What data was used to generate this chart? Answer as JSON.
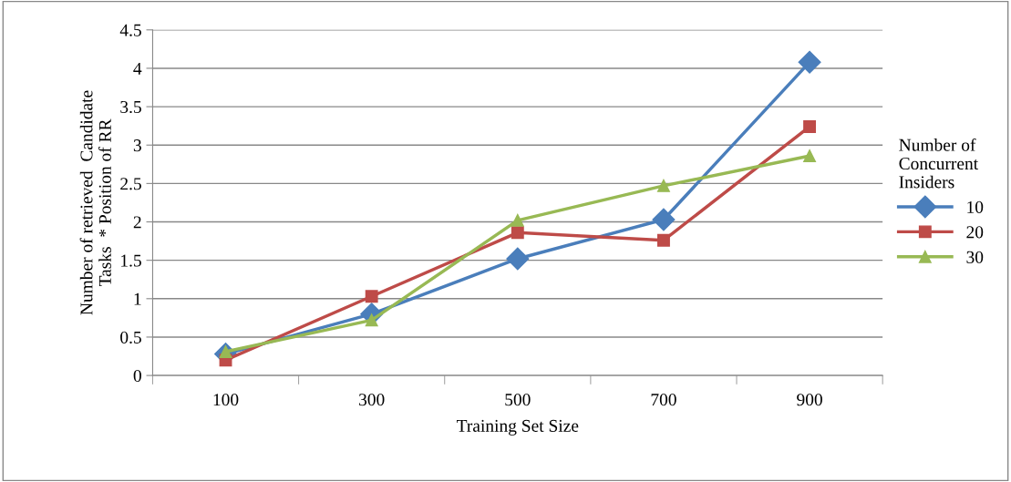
{
  "chart_data": {
    "type": "line",
    "xlabel": "Training Set Size",
    "ylabel": "Number of retrieved  Candidate Tasks  * Position of RR",
    "legend_title": "Number of Concurrent Insiders",
    "categories": [
      "100",
      "300",
      "500",
      "700",
      "900"
    ],
    "series": [
      {
        "name": "10",
        "color": "#4a7ebb",
        "marker": "diamond",
        "values": [
          0.28,
          0.8,
          1.52,
          2.03,
          4.08
        ]
      },
      {
        "name": "20",
        "color": "#be4b48",
        "marker": "square",
        "values": [
          0.2,
          1.03,
          1.86,
          1.76,
          3.24
        ]
      },
      {
        "name": "30",
        "color": "#98b954",
        "marker": "triangle",
        "values": [
          0.31,
          0.72,
          2.02,
          2.47,
          2.86
        ]
      }
    ],
    "ylim": [
      0,
      4.5
    ],
    "yticks": [
      0,
      0.5,
      1,
      1.5,
      2,
      2.5,
      3,
      3.5,
      4,
      4.5
    ],
    "grid": "y",
    "legend": "right",
    "line_style": "solid"
  }
}
